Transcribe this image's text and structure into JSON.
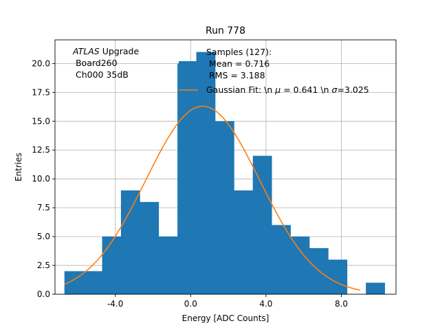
{
  "chart_data": {
    "type": "bar",
    "title": "Run 778",
    "xlabel": "Energy [ADC Counts]",
    "ylabel": "Entries",
    "xlim": [
      -7.2,
      10.9
    ],
    "ylim": [
      0,
      22.05
    ],
    "xticks": [
      -4,
      0,
      4,
      8
    ],
    "xtick_labels": [
      "-4.0",
      "0.0",
      "4.0",
      "8.0"
    ],
    "yticks": [
      0,
      2.5,
      5,
      7.5,
      10,
      12.5,
      15,
      17.5,
      20
    ],
    "ytick_labels": [
      "0.0",
      "2.5",
      "5.0",
      "7.5",
      "10.0",
      "12.5",
      "15.0",
      "17.5",
      "20.0"
    ],
    "grid": true,
    "bin_edges": [
      -6.7,
      -5.7,
      -4.7,
      -3.7,
      -2.7,
      -1.7,
      -0.7,
      0.3,
      1.3,
      2.3,
      3.3,
      4.3,
      5.3,
      6.3,
      7.3,
      8.3,
      9.3,
      10.3
    ],
    "bin_counts": [
      2,
      2,
      5,
      9,
      8,
      5,
      20,
      21,
      15,
      9,
      12,
      6,
      5,
      4,
      3,
      0,
      1
    ],
    "gaussian": {
      "amplitude": 16.3,
      "mean": 0.641,
      "sigma": 3.025,
      "x_range": [
        -6.7,
        9.0
      ]
    },
    "colors": {
      "bars": "#1f77b4",
      "fit": "#ff7f0e",
      "grid": "#b0b0b0"
    },
    "annotation": {
      "experiment_italic": "ATLAS",
      "experiment_suffix": " Upgrade",
      "board": " Board260",
      "channel": " Ch000 35dB"
    },
    "legend": {
      "location": "upper right",
      "samples_line1": "Samples (127):",
      "samples_line2": " Mean = 0.716",
      "samples_line3": " RMS = 3.188",
      "fit_label_prefix": "Gaussian Fit: \\n ",
      "fit_mu": "μ",
      "fit_label_middle": " = 0.641 \\n ",
      "fit_sigma": "σ",
      "fit_label_suffix": "=3.025"
    }
  }
}
